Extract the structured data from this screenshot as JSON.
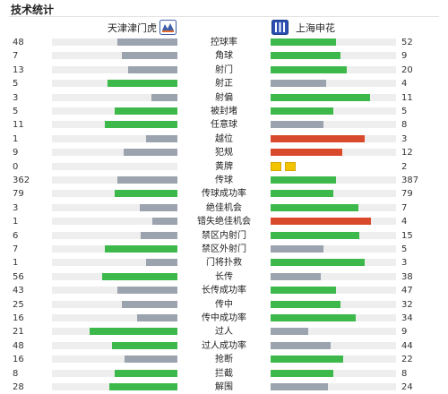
{
  "title": "技术统计",
  "home_team": "天津津门虎",
  "away_team": "上海申花",
  "colors": {
    "gray": "#9aa3ae",
    "green": "#3cb94a",
    "red": "#d84a2b",
    "yellow": "#f2c400",
    "track": "#eeeeee"
  },
  "stats": [
    {
      "label": "控球率",
      "home": "48",
      "away": "52",
      "home_fill": 0.48,
      "away_fill": 0.52,
      "home_color": "gray",
      "away_color": "green"
    },
    {
      "label": "角球",
      "home": "7",
      "away": "9",
      "home_fill": 0.44,
      "away_fill": 0.56,
      "home_color": "gray",
      "away_color": "green"
    },
    {
      "label": "射门",
      "home": "13",
      "away": "20",
      "home_fill": 0.39,
      "away_fill": 0.61,
      "home_color": "gray",
      "away_color": "green"
    },
    {
      "label": "射正",
      "home": "5",
      "away": "4",
      "home_fill": 0.56,
      "away_fill": 0.44,
      "home_color": "green",
      "away_color": "gray"
    },
    {
      "label": "射偏",
      "home": "3",
      "away": "11",
      "home_fill": 0.21,
      "away_fill": 0.79,
      "home_color": "gray",
      "away_color": "green"
    },
    {
      "label": "被封堵",
      "home": "5",
      "away": "5",
      "home_fill": 0.5,
      "away_fill": 0.5,
      "home_color": "green",
      "away_color": "green"
    },
    {
      "label": "任意球",
      "home": "11",
      "away": "8",
      "home_fill": 0.58,
      "away_fill": 0.42,
      "home_color": "green",
      "away_color": "gray"
    },
    {
      "label": "越位",
      "home": "1",
      "away": "3",
      "home_fill": 0.25,
      "away_fill": 0.75,
      "home_color": "gray",
      "away_color": "red"
    },
    {
      "label": "犯规",
      "home": "9",
      "away": "12",
      "home_fill": 0.43,
      "away_fill": 0.57,
      "home_color": "gray",
      "away_color": "red"
    },
    {
      "label": "黄牌",
      "home": "0",
      "away": "2",
      "home_fill": 0,
      "away_fill": 0,
      "home_color": "gray",
      "away_color": "yellow",
      "away_cards": 2
    },
    {
      "label": "传球",
      "home": "362",
      "away": "387",
      "home_fill": 0.48,
      "away_fill": 0.52,
      "home_color": "gray",
      "away_color": "green"
    },
    {
      "label": "传球成功率",
      "home": "79",
      "away": "79",
      "home_fill": 0.5,
      "away_fill": 0.5,
      "home_color": "green",
      "away_color": "green"
    },
    {
      "label": "绝佳机会",
      "home": "3",
      "away": "7",
      "home_fill": 0.3,
      "away_fill": 0.7,
      "home_color": "gray",
      "away_color": "green"
    },
    {
      "label": "错失绝佳机会",
      "home": "1",
      "away": "4",
      "home_fill": 0.2,
      "away_fill": 0.8,
      "home_color": "gray",
      "away_color": "red"
    },
    {
      "label": "禁区内射门",
      "home": "6",
      "away": "15",
      "home_fill": 0.29,
      "away_fill": 0.71,
      "home_color": "gray",
      "away_color": "green"
    },
    {
      "label": "禁区外射门",
      "home": "7",
      "away": "5",
      "home_fill": 0.58,
      "away_fill": 0.42,
      "home_color": "green",
      "away_color": "gray"
    },
    {
      "label": "门将扑救",
      "home": "1",
      "away": "3",
      "home_fill": 0.25,
      "away_fill": 0.75,
      "home_color": "gray",
      "away_color": "green"
    },
    {
      "label": "长传",
      "home": "56",
      "away": "38",
      "home_fill": 0.6,
      "away_fill": 0.4,
      "home_color": "green",
      "away_color": "gray"
    },
    {
      "label": "长传成功率",
      "home": "43",
      "away": "47",
      "home_fill": 0.48,
      "away_fill": 0.52,
      "home_color": "gray",
      "away_color": "green"
    },
    {
      "label": "传中",
      "home": "25",
      "away": "32",
      "home_fill": 0.44,
      "away_fill": 0.56,
      "home_color": "gray",
      "away_color": "green"
    },
    {
      "label": "传中成功率",
      "home": "16",
      "away": "34",
      "home_fill": 0.32,
      "away_fill": 0.68,
      "home_color": "gray",
      "away_color": "green"
    },
    {
      "label": "过人",
      "home": "21",
      "away": "9",
      "home_fill": 0.7,
      "away_fill": 0.3,
      "home_color": "green",
      "away_color": "gray"
    },
    {
      "label": "过人成功率",
      "home": "48",
      "away": "44",
      "home_fill": 0.52,
      "away_fill": 0.48,
      "home_color": "green",
      "away_color": "gray"
    },
    {
      "label": "抢断",
      "home": "16",
      "away": "22",
      "home_fill": 0.42,
      "away_fill": 0.58,
      "home_color": "gray",
      "away_color": "green"
    },
    {
      "label": "拦截",
      "home": "8",
      "away": "8",
      "home_fill": 0.5,
      "away_fill": 0.5,
      "home_color": "green",
      "away_color": "green"
    },
    {
      "label": "解围",
      "home": "28",
      "away": "24",
      "home_fill": 0.54,
      "away_fill": 0.46,
      "home_color": "green",
      "away_color": "gray"
    }
  ]
}
